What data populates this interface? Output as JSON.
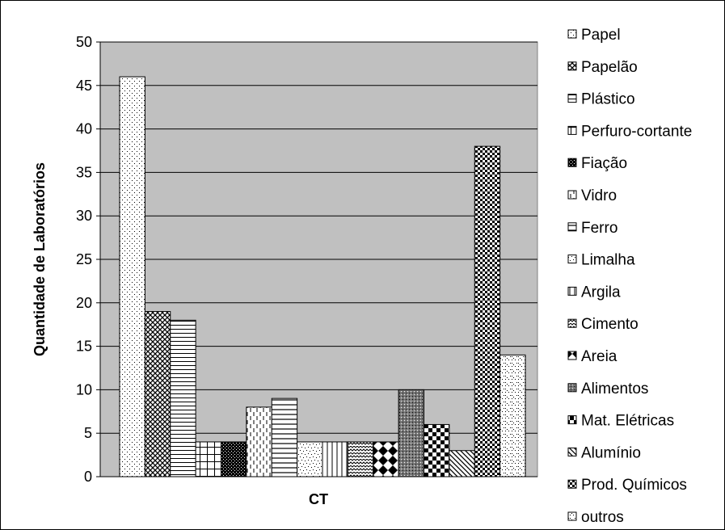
{
  "chart_data": {
    "type": "bar",
    "xlabel": "CT",
    "ylabel": "Quantidade de Laboratórios",
    "ylim": [
      0,
      50
    ],
    "yticks": [
      "0",
      "5",
      "10",
      "15",
      "20",
      "25",
      "30",
      "35",
      "40",
      "45",
      "50"
    ],
    "grid": true,
    "legend_position": "right",
    "plot_background": "#c0c0c0",
    "series": [
      {
        "name": "Papel",
        "value": 46,
        "pattern": "dots-sparse"
      },
      {
        "name": "Papelão",
        "value": 19,
        "pattern": "crosshatch-dense"
      },
      {
        "name": "Plástico",
        "value": 18,
        "pattern": "horizontal-lines"
      },
      {
        "name": "Perfuro-cortante",
        "value": 4,
        "pattern": "grid"
      },
      {
        "name": "Fiação",
        "value": 4,
        "pattern": "dense-dark"
      },
      {
        "name": "Vidro",
        "value": 8,
        "pattern": "vertical-dashes"
      },
      {
        "name": "Ferro",
        "value": 9,
        "pattern": "horizontal-lines-wide"
      },
      {
        "name": "Limalha",
        "value": 4,
        "pattern": "dots-scatter"
      },
      {
        "name": "Argila",
        "value": 4,
        "pattern": "vertical-lines"
      },
      {
        "name": "Cimento",
        "value": 4,
        "pattern": "zigzag"
      },
      {
        "name": "Areia",
        "value": 4,
        "pattern": "diamonds"
      },
      {
        "name": "Alimentos",
        "value": 10,
        "pattern": "shaded-dots"
      },
      {
        "name": "Mat. Elétricas",
        "value": 6,
        "pattern": "checkerboard"
      },
      {
        "name": "Alumínio",
        "value": 3,
        "pattern": "diagonal-stripes"
      },
      {
        "name": "Prod. Químicos",
        "value": 38,
        "pattern": "small-checker"
      },
      {
        "name": "outros",
        "value": 14,
        "pattern": "dotted-diagonal"
      }
    ]
  }
}
